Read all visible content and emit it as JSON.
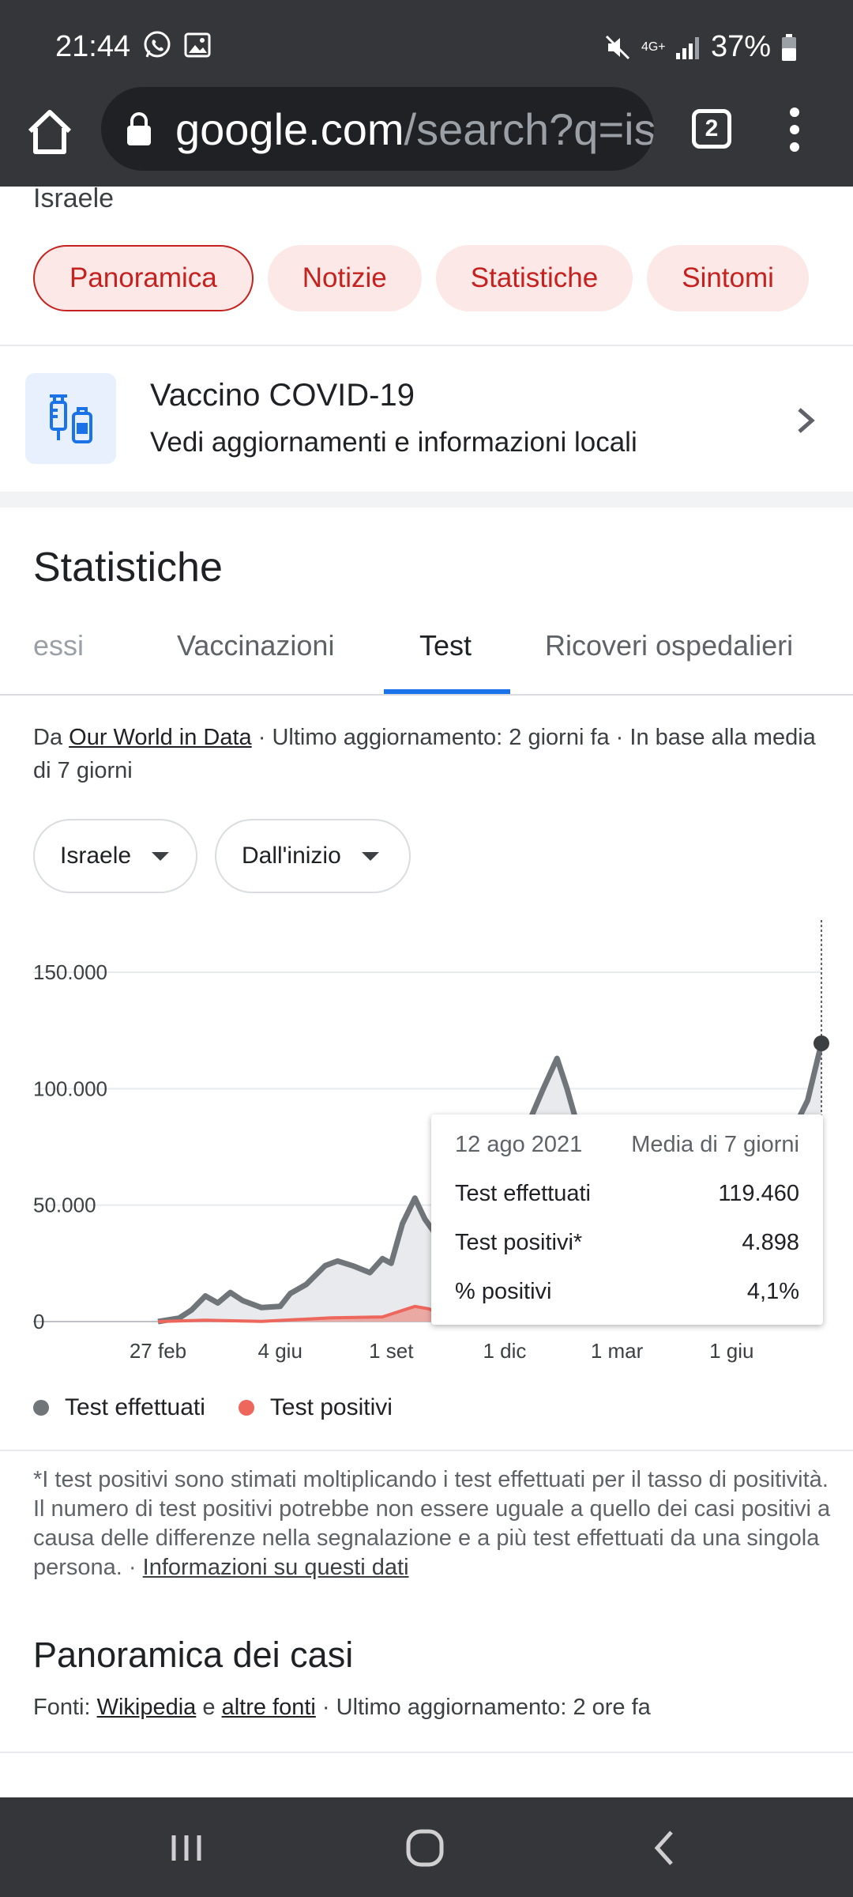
{
  "status_bar": {
    "time": "21:44",
    "battery": "37%",
    "network": "4G+",
    "icons": [
      "whatsapp-icon",
      "gallery-icon",
      "mute-icon",
      "network-icon",
      "signal-icon",
      "battery-icon"
    ]
  },
  "browser": {
    "url_host": "google.com",
    "url_path": "/search?q=is",
    "tab_count": "2"
  },
  "top": {
    "country": "Israele",
    "chips": [
      "Panoramica",
      "Notizie",
      "Statistiche",
      "Sintomi"
    ],
    "active_chip": "Panoramica"
  },
  "vaccine_card": {
    "title": "Vaccino COVID-19",
    "subtitle": "Vedi aggiornamenti e informazioni locali"
  },
  "stats": {
    "title": "Statistiche",
    "tabs": [
      "essi",
      "Vaccinazioni",
      "Test",
      "Ricoveri ospedalieri"
    ],
    "selected_tab": "Test",
    "source_prefix": "Da ",
    "source_link": "Our World in Data",
    "source_suffix": " · Ultimo aggiornamento: 2 giorni fa · In base alla media di 7 giorni",
    "dropdown_country": "Israele",
    "dropdown_range": "Dall'inizio"
  },
  "chart_data": {
    "type": "area",
    "ytick_labels": [
      "150.000",
      "100.000",
      "50.000",
      "0"
    ],
    "xtick_labels": [
      "27 feb",
      "4 giu",
      "1 set",
      "1 dic",
      "1 mar",
      "1 giu"
    ],
    "ylim": [
      0,
      150000
    ],
    "grid": true,
    "legend_position": "bottom-left",
    "series": [
      {
        "name": "Test effettuati",
        "color": "#70757a",
        "points": [
          [
            "2020-02-27",
            0
          ],
          [
            "2020-03-15",
            1500
          ],
          [
            "2020-03-25",
            5000
          ],
          [
            "2020-04-05",
            11000
          ],
          [
            "2020-04-15",
            8000
          ],
          [
            "2020-04-25",
            12500
          ],
          [
            "2020-05-05",
            9000
          ],
          [
            "2020-05-20",
            6000
          ],
          [
            "2020-06-04",
            6500
          ],
          [
            "2020-06-12",
            12000
          ],
          [
            "2020-06-25",
            16000
          ],
          [
            "2020-07-10",
            24000
          ],
          [
            "2020-07-20",
            26000
          ],
          [
            "2020-08-01",
            24000
          ],
          [
            "2020-08-15",
            21000
          ],
          [
            "2020-08-25",
            27000
          ],
          [
            "2020-09-01",
            25000
          ],
          [
            "2020-09-10",
            42000
          ],
          [
            "2020-09-20",
            53000
          ],
          [
            "2020-09-28",
            44000
          ],
          [
            "2020-10-10",
            35000
          ],
          [
            "2020-11-01",
            52000
          ],
          [
            "2020-12-01",
            75000
          ],
          [
            "2020-12-20",
            85000
          ],
          [
            "2021-01-01",
            100000
          ],
          [
            "2021-01-12",
            113000
          ],
          [
            "2021-01-20",
            100000
          ],
          [
            "2021-01-28",
            85000
          ],
          [
            "2021-03-01",
            80000
          ],
          [
            "2021-04-15",
            60000
          ],
          [
            "2021-06-01",
            45000
          ],
          [
            "2021-07-01",
            55000
          ],
          [
            "2021-07-20",
            82000
          ],
          [
            "2021-08-01",
            95000
          ],
          [
            "2021-08-12",
            119460
          ]
        ]
      },
      {
        "name": "Test positivi",
        "color": "#ee675c",
        "points": [
          [
            "2020-02-27",
            0
          ],
          [
            "2020-04-05",
            600
          ],
          [
            "2020-05-20",
            100
          ],
          [
            "2020-07-15",
            1600
          ],
          [
            "2020-08-25",
            2000
          ],
          [
            "2020-09-20",
            6500
          ],
          [
            "2020-10-01",
            5500
          ],
          [
            "2020-10-15",
            2500
          ],
          [
            "2020-11-15",
            1000
          ],
          [
            "2021-01-12",
            8000
          ],
          [
            "2021-03-15",
            1000
          ],
          [
            "2021-06-01",
            100
          ],
          [
            "2021-07-15",
            1500
          ],
          [
            "2021-08-12",
            4898
          ]
        ]
      }
    ],
    "tooltip": {
      "date": "12 ago 2021",
      "label": "Media di 7 giorni",
      "rows": [
        {
          "label": "Test effettuati",
          "value": "119.460"
        },
        {
          "label": "Test positivi*",
          "value": "4.898"
        },
        {
          "label": "% positivi",
          "value": "4,1%"
        }
      ]
    }
  },
  "footnote": {
    "text": "*I test positivi sono stimati moltiplicando i test effettuati per il tasso di positività. Il numero di test positivi potrebbe non essere uguale a quello dei casi positivi a causa delle differenze nella segnalazione e a più test effettuati da una singola persona.  · ",
    "link": "Informazioni su questi dati"
  },
  "cases": {
    "title": "Panoramica dei casi",
    "source_prefix": "Fonti: ",
    "source_link1": "Wikipedia",
    "source_and": " e ",
    "source_link2": "altre fonti",
    "source_suffix": " · Ultimo aggiornamento: 2 ore fa"
  }
}
